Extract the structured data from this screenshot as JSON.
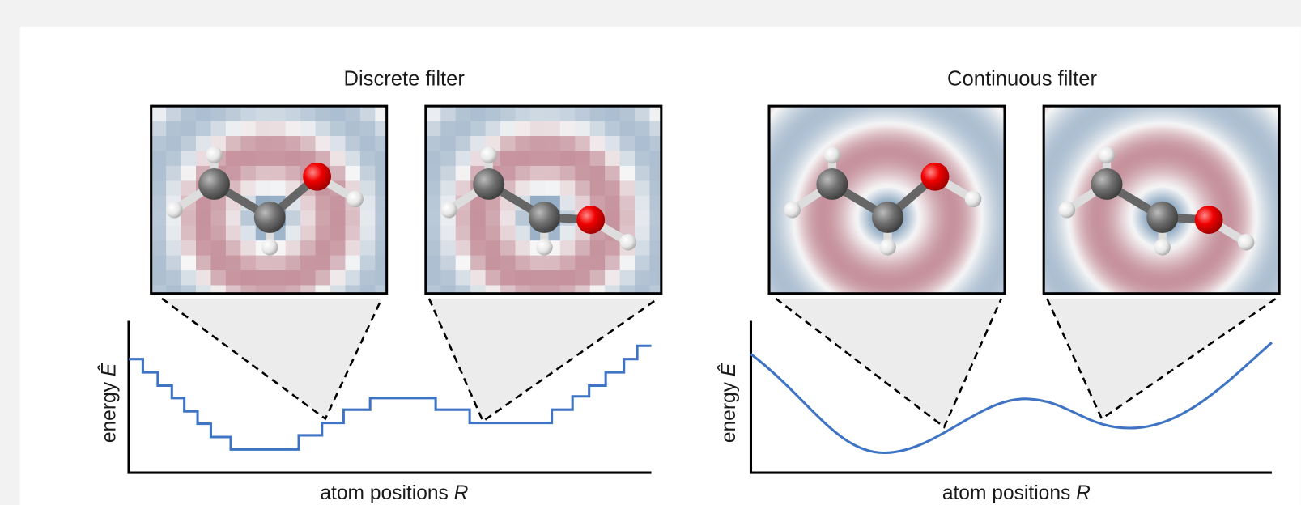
{
  "panels": [
    {
      "title": "Discrete filter",
      "y_label": "energy",
      "y_symbol": "Ê",
      "x_label": "atom positions",
      "x_symbol": "R"
    },
    {
      "title": "Continuous filter",
      "y_label": "energy",
      "y_symbol": "Ê",
      "x_label": "atom positions",
      "x_symbol": "R"
    }
  ]
}
